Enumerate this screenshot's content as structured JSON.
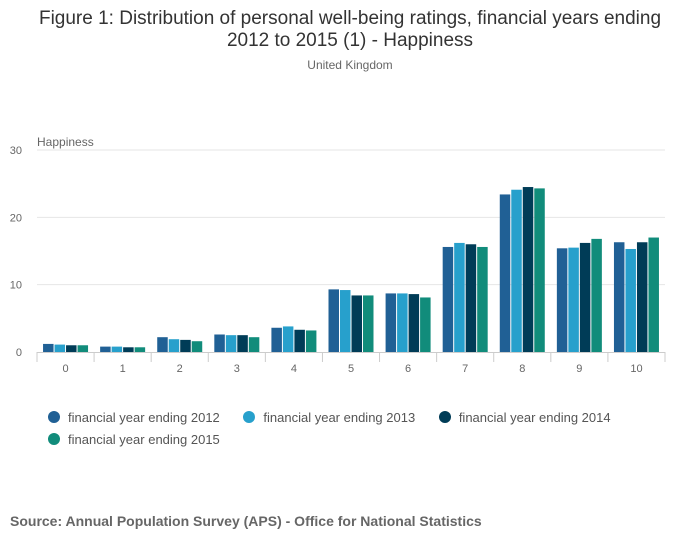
{
  "chart_data": {
    "type": "bar",
    "title": "Figure 1: Distribution of personal well-being ratings, financial years ending 2012 to 2015 (1) - Happiness",
    "subtitle": "United Kingdom",
    "ylabel": "Happiness",
    "xlabel": "",
    "ylim": [
      0,
      30
    ],
    "yticks": [
      0,
      10,
      20,
      30
    ],
    "categories": [
      "0",
      "1",
      "2",
      "3",
      "4",
      "5",
      "6",
      "7",
      "8",
      "9",
      "10"
    ],
    "series": [
      {
        "name": "financial year ending 2012",
        "color": "#206095",
        "values": [
          1.2,
          0.8,
          2.2,
          2.6,
          3.6,
          9.3,
          8.7,
          15.6,
          23.4,
          15.4,
          16.3
        ]
      },
      {
        "name": "financial year ending 2013",
        "color": "#27A0CC",
        "values": [
          1.1,
          0.8,
          1.9,
          2.5,
          3.8,
          9.2,
          8.7,
          16.2,
          24.1,
          15.5,
          15.3
        ]
      },
      {
        "name": "financial year ending 2014",
        "color": "#003C57",
        "values": [
          1.0,
          0.7,
          1.8,
          2.5,
          3.3,
          8.4,
          8.6,
          16.0,
          24.5,
          16.2,
          16.3
        ]
      },
      {
        "name": "financial year ending 2015",
        "color": "#118C7B",
        "values": [
          1.0,
          0.7,
          1.6,
          2.2,
          3.2,
          8.4,
          8.1,
          15.6,
          24.3,
          16.8,
          17.0
        ]
      }
    ]
  },
  "source": "Source: Annual Population Survey (APS) - Office for National Statistics"
}
